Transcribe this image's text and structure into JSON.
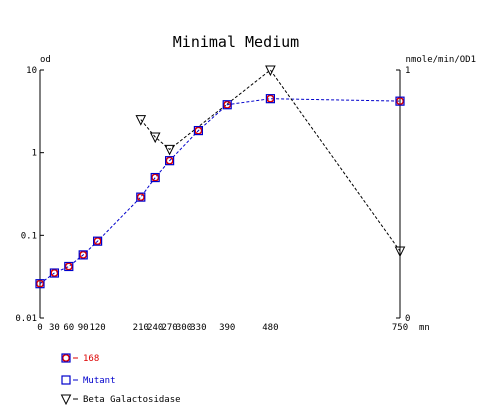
{
  "chart_data": {
    "type": "line",
    "title": "Minimal Medium",
    "y_left_label": "od",
    "y_right_label": "nmole/min/OD1",
    "x_unit_label": "mn",
    "x_ticks": [
      0,
      30,
      60,
      90,
      120,
      210,
      240,
      270,
      300,
      330,
      390,
      480,
      750
    ],
    "x_tick_labels": [
      "0",
      "30",
      "60",
      "90",
      "120",
      "210",
      "240",
      "270",
      "300",
      "330",
      "390",
      "480",
      "750"
    ],
    "y_left_scale": "log",
    "y_left_ticks": [
      0.01,
      0.1,
      1,
      10
    ],
    "y_left_tick_labels": [
      "0.01",
      "0.1",
      "1",
      "10"
    ],
    "y_left_lim": [
      0.01,
      10
    ],
    "y_right_ticks": [
      0,
      1
    ],
    "y_right_tick_labels": [
      "0",
      "1"
    ],
    "y_right_lim": [
      0,
      1
    ],
    "grid": false,
    "legend_position": "bottom-left",
    "series": [
      {
        "name": "168",
        "axis": "left",
        "marker": "circle",
        "color": "#dd0000",
        "line": false,
        "x": [
          0,
          30,
          60,
          90,
          120,
          210,
          240,
          270,
          330,
          390,
          480,
          750
        ],
        "y": [
          0.026,
          0.035,
          0.042,
          0.058,
          0.085,
          0.29,
          0.5,
          0.8,
          1.85,
          3.8,
          4.5,
          4.2
        ]
      },
      {
        "name": "Mutant",
        "axis": "left",
        "marker": "square",
        "color": "#0000cc",
        "line": true,
        "x": [
          0,
          30,
          60,
          90,
          120,
          210,
          240,
          270,
          330,
          390,
          480,
          750
        ],
        "y": [
          0.026,
          0.035,
          0.042,
          0.058,
          0.085,
          0.29,
          0.5,
          0.8,
          1.85,
          3.8,
          4.5,
          4.2
        ]
      },
      {
        "name": "Beta Galactosidase",
        "axis": "right",
        "marker": "triangle-down",
        "color": "#000000",
        "line": true,
        "x": [
          210,
          240,
          270,
          480,
          750
        ],
        "y": [
          0.8,
          0.73,
          0.68,
          1.0,
          0.27
        ]
      }
    ]
  }
}
